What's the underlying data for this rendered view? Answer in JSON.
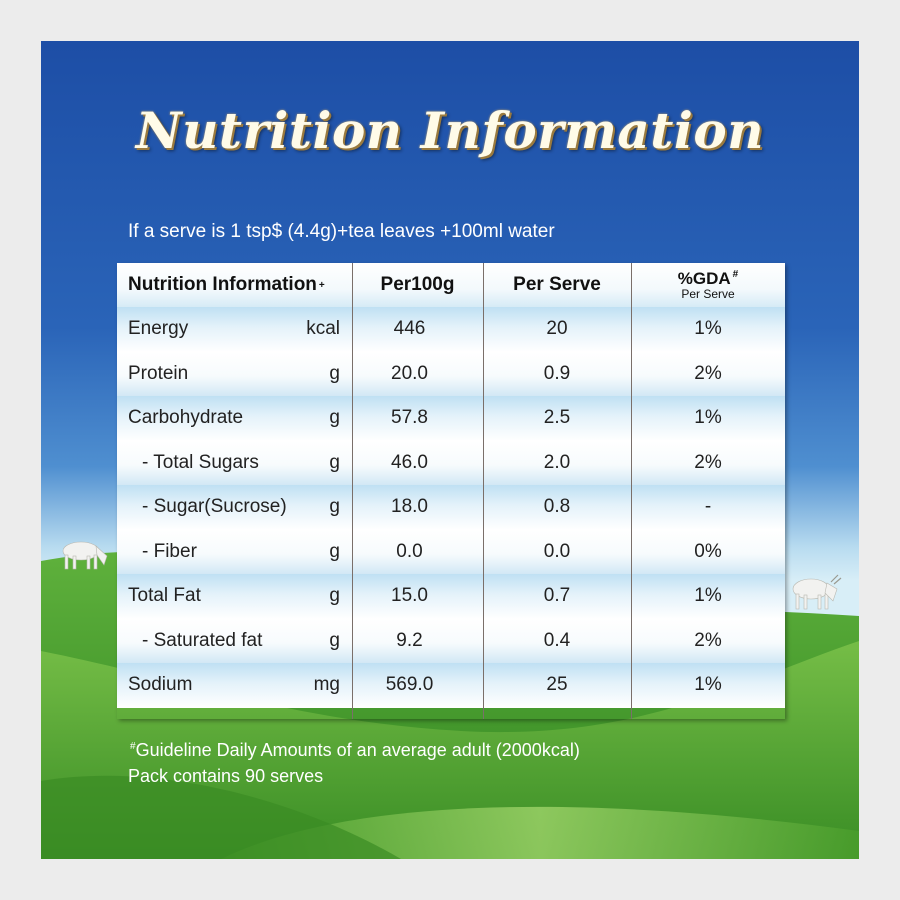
{
  "title": "Nutrition Information",
  "serve_note": "If a serve is 1 tsp$ (4.4g)+tea leaves +100ml water",
  "table": {
    "headers": {
      "nutrient": "Nutrition Information",
      "nutrient_mark": "+",
      "per100g": "Per100g",
      "per_serve": "Per Serve",
      "gda": "%GDA",
      "gda_mark": "#",
      "gda_sub": "Per Serve"
    },
    "rows": [
      {
        "name": "Energy",
        "unit": "kcal",
        "per100g": "446",
        "per_serve": "20",
        "gda": "1%"
      },
      {
        "name": "Protein",
        "unit": "g",
        "per100g": "20.0",
        "per_serve": "0.9",
        "gda": "2%"
      },
      {
        "name": "Carbohydrate",
        "unit": "g",
        "per100g": "57.8",
        "per_serve": "2.5",
        "gda": "1%"
      },
      {
        "name": "- Total Sugars",
        "unit": "g",
        "per100g": "46.0",
        "per_serve": "2.0",
        "gda": "2%"
      },
      {
        "name": "- Sugar(Sucrose)",
        "unit": "g",
        "per100g": "18.0",
        "per_serve": "0.8",
        "gda": "-"
      },
      {
        "name": "- Fiber",
        "unit": "g",
        "per100g": "0.0",
        "per_serve": "0.0",
        "gda": "0%"
      },
      {
        "name": "Total Fat",
        "unit": "g",
        "per100g": "15.0",
        "per_serve": "0.7",
        "gda": "1%"
      },
      {
        "name": "- Saturated fat",
        "unit": "g",
        "per100g": "9.2",
        "per_serve": "0.4",
        "gda": "2%"
      },
      {
        "name": "Sodium",
        "unit": "mg",
        "per100g": "569.0",
        "per_serve": "25",
        "gda": "1%"
      }
    ]
  },
  "footer": {
    "gda_mark": "#",
    "gda_note": "Guideline Daily Amounts of an average adult (2000kcal)",
    "pack_note": "Pack contains 90 serves"
  },
  "colors": {
    "sky_top": "#1d4ea6",
    "grass": "#3f9a2a",
    "title_text": "#fffbe8"
  }
}
